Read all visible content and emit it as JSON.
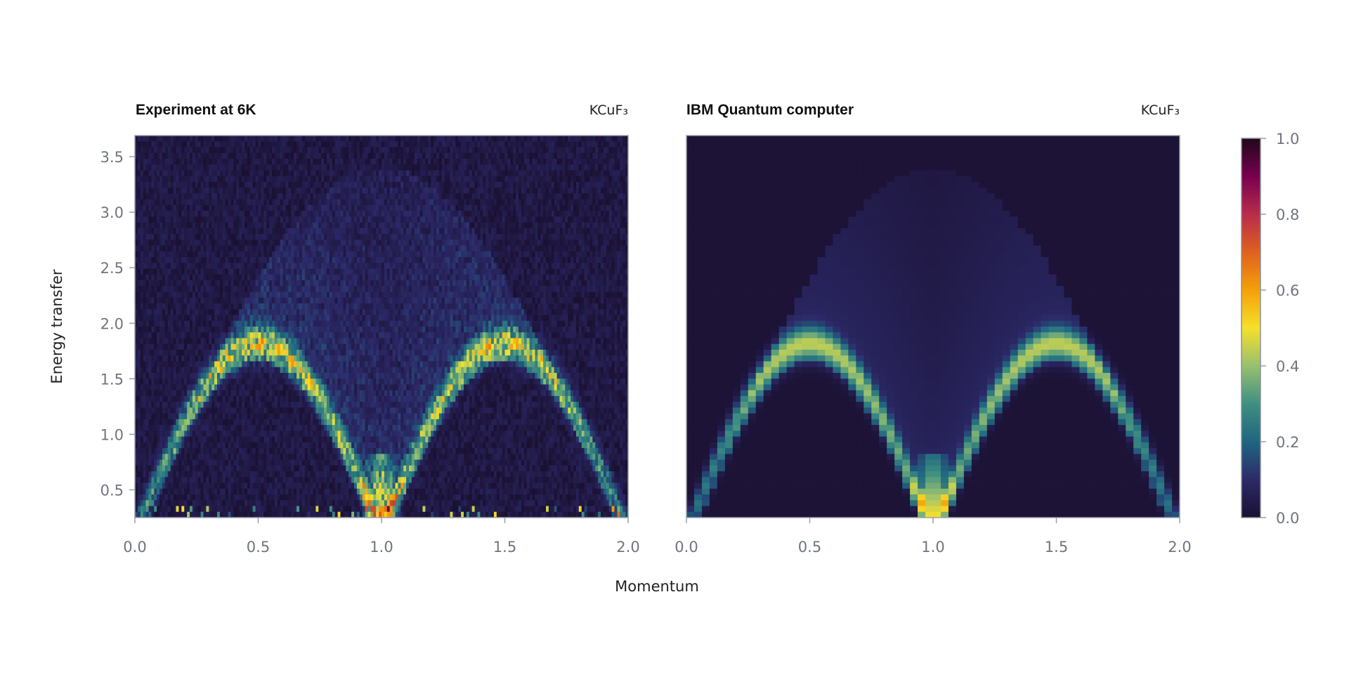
{
  "chart_data": [
    {
      "type": "heatmap",
      "title": "Experiment at 6K",
      "annotation": "KCuF₃",
      "xlabel": "Momentum",
      "ylabel": "Energy transfer",
      "xlim": [
        0.0,
        2.0
      ],
      "ylim": [
        0.25,
        3.69
      ],
      "xticks": [
        "0.0",
        "0.5",
        "1.0",
        "1.5",
        "2.0"
      ],
      "yticks": [
        "0.5",
        "1.0",
        "1.5",
        "2.0",
        "2.5",
        "3.0",
        "3.5"
      ],
      "description_of_features": {
        "lower_edge_peak_energy": 1.7,
        "lower_edge_peak_momentum": [
          0.5,
          1.5
        ],
        "max_intensity_momentum": 1.0,
        "max_intensity_energy": 0.45
      },
      "noisy": true
    },
    {
      "type": "heatmap",
      "title": "IBM Quantum computer",
      "annotation": "KCuF₃",
      "xlabel": "Momentum",
      "xlim": [
        0.0,
        2.0
      ],
      "ylim": [
        0.25,
        3.69
      ],
      "xticks": [
        "0.0",
        "0.5",
        "1.0",
        "1.5",
        "2.0"
      ],
      "description_of_features": {
        "lower_edge_peak_energy": 1.7,
        "lower_edge_peak_momentum": [
          0.5,
          1.5
        ],
        "max_intensity_momentum": 1.0,
        "max_intensity_energy": 0.45
      },
      "noisy": false
    }
  ],
  "colorbar": {
    "range": [
      0.0,
      1.0
    ],
    "ticks": [
      "0.0",
      "0.2",
      "0.4",
      "0.6",
      "0.8",
      "1.0"
    ],
    "colors": [
      "#1a1030",
      "#2c2a6a",
      "#1f6680",
      "#3f8f80",
      "#98c070",
      "#f5e02a",
      "#f5a00a",
      "#e0601e",
      "#b82c4a",
      "#780050",
      "#200818"
    ]
  },
  "shared_xlabel": "Momentum"
}
